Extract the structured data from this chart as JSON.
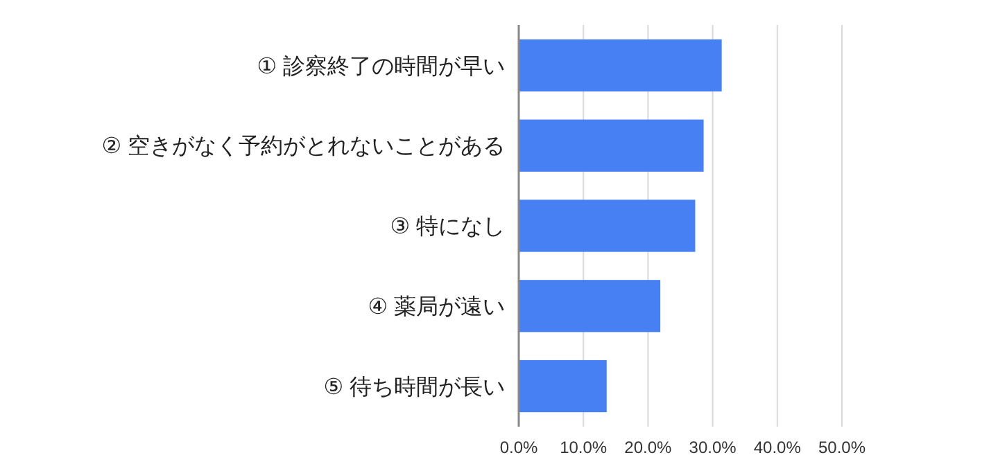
{
  "chart_data": {
    "type": "bar",
    "orientation": "horizontal",
    "categories": [
      "① 診察終了の時間が早い",
      "② 空きがなく予約がとれないことがある",
      "③ 特になし",
      "④ 薬局が遠い",
      "⑤ 待ち時間が長い"
    ],
    "values": [
      31.4,
      28.6,
      27.3,
      21.9,
      13.6
    ],
    "color": "#4680f2",
    "xlim": [
      0,
      50
    ],
    "xticks": [
      {
        "value": 0,
        "label": "0.0%"
      },
      {
        "value": 10,
        "label": "10.0%"
      },
      {
        "value": 20,
        "label": "20.0%"
      },
      {
        "value": 30,
        "label": "30.0%"
      },
      {
        "value": 40,
        "label": "40.0%"
      },
      {
        "value": 50,
        "label": "50.0%"
      }
    ],
    "grid": "x"
  }
}
